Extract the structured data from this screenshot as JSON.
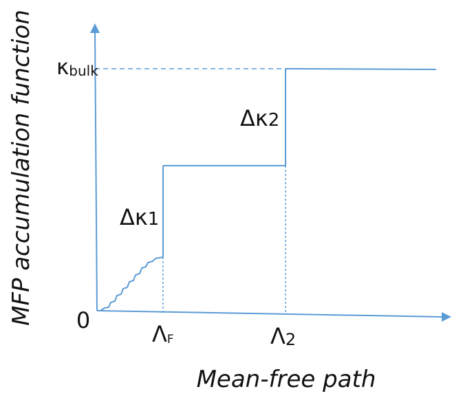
{
  "figure": {
    "y_axis_label": "MFP accumulation function",
    "x_axis_label": "Mean-free path",
    "origin_label": "0",
    "kappa_bulk_symbol": "κ",
    "kappa_bulk_subscript": "bulk",
    "delta_kappa_1_symbol": "Δκ",
    "delta_kappa_1_subscript": "1",
    "delta_kappa_2_symbol": "Δκ",
    "delta_kappa_2_subscript": "2",
    "lambda_f_symbol": "Λ",
    "lambda_f_subscript": "F",
    "lambda_2_symbol": "Λ",
    "lambda_2_subscript": "2"
  },
  "colors": {
    "line": "#5b9bd5",
    "text": "#111111"
  }
}
